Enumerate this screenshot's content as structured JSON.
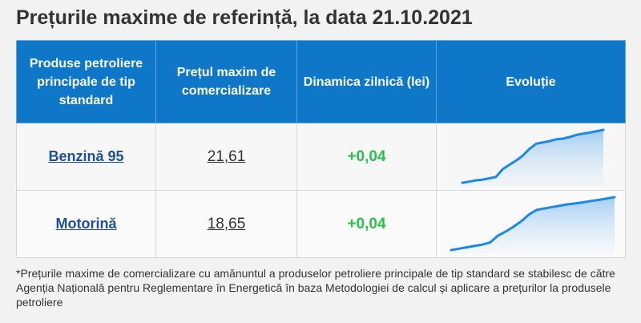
{
  "title": "Prețurile maxime de referință, la data 21.10.2021",
  "table": {
    "headers": [
      "Produse petroliere principale de tip standard",
      "Prețul maxim de comercializare",
      "Dinamica zilnică (lei)",
      "Evoluție"
    ],
    "rows": [
      {
        "product": "Benzină 95",
        "price": "21,61",
        "delta": "+0,04",
        "trend": [
          20.05,
          20.08,
          20.12,
          20.14,
          20.18,
          20.22,
          20.45,
          20.58,
          20.7,
          20.85,
          21.05,
          21.2,
          21.24,
          21.28,
          21.33,
          21.35,
          21.4,
          21.46,
          21.5,
          21.53,
          21.57,
          21.61
        ]
      },
      {
        "product": "Motorină",
        "price": "18,65",
        "delta": "+0,04",
        "trend": [
          17.1,
          17.14,
          17.18,
          17.22,
          17.26,
          17.32,
          17.52,
          17.64,
          17.78,
          17.94,
          18.14,
          18.28,
          18.32,
          18.36,
          18.4,
          18.44,
          18.47,
          18.5,
          18.54,
          18.57,
          18.61,
          18.65
        ]
      }
    ]
  },
  "colors": {
    "header_bg": "#0f77c7",
    "spark_line": "#1e88e5",
    "delta_positive": "#27c24a",
    "product_link": "#1f4f99"
  },
  "footnote": "*Prețurile maxime de comercializare cu amănuntul a produselor petroliere principale de tip standard se stabilesc de către Agenția Națională pentru Reglementare în Energetică în baza Metodologiei de calcul și aplicare a prețurilor la produsele petroliere"
}
